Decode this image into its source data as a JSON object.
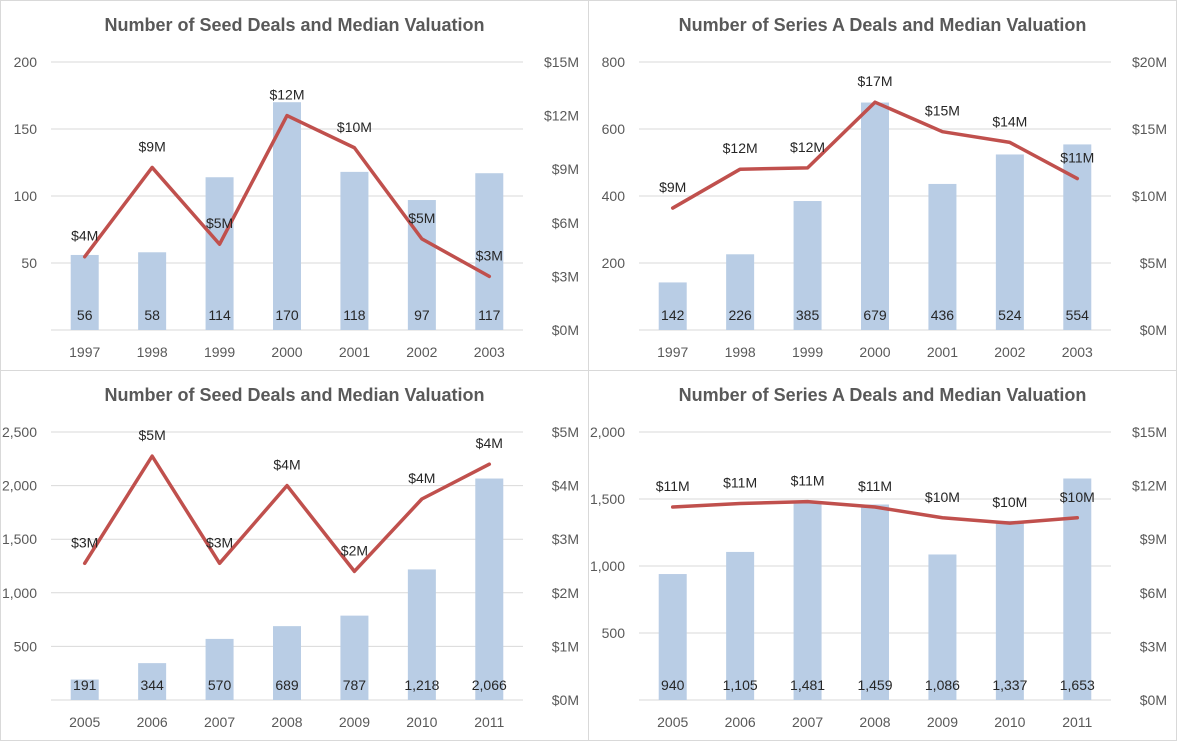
{
  "colors": {
    "bar": "#b9cde5",
    "line": "#c0504d",
    "axis_text": "#595959",
    "label_text": "#262626",
    "title_text": "#595959"
  },
  "chart_data": [
    {
      "type": "bar",
      "title": "Number of Seed Deals and Median Valuation",
      "categories": [
        "1997",
        "1998",
        "1999",
        "2000",
        "2001",
        "2002",
        "2003"
      ],
      "series": [
        {
          "values": [
            56,
            58,
            114,
            170,
            118,
            97,
            117
          ],
          "value_labels": [
            "56",
            "58",
            "114",
            "170",
            "118",
            "97",
            "117"
          ]
        },
        {
          "type": "line",
          "values": [
            4.1,
            9.1,
            4.8,
            12.0,
            10.2,
            5.1,
            3.0
          ],
          "value_labels": [
            "$4M",
            "$9M",
            "$5M",
            "$12M",
            "$10M",
            "$5M",
            "$3M"
          ]
        }
      ],
      "ylim": [
        0,
        200
      ],
      "y_ticks": [
        50,
        100,
        150,
        200
      ],
      "y_tick_labels": [
        "50",
        "100",
        "150",
        "200"
      ],
      "y2lim": [
        0,
        15
      ],
      "y2_ticks": [
        0,
        3,
        6,
        9,
        12,
        15
      ],
      "y2_tick_labels": [
        "$0M",
        "$3M",
        "$6M",
        "$9M",
        "$12M",
        "$15M"
      ],
      "grid": true
    },
    {
      "type": "bar",
      "title": "Number of Series A Deals and Median Valuation",
      "categories": [
        "1997",
        "1998",
        "1999",
        "2000",
        "2001",
        "2002",
        "2003"
      ],
      "series": [
        {
          "values": [
            142,
            226,
            385,
            679,
            436,
            524,
            554
          ],
          "value_labels": [
            "142",
            "226",
            "385",
            "679",
            "436",
            "524",
            "554"
          ]
        },
        {
          "type": "line",
          "values": [
            9.1,
            12.0,
            12.1,
            17.0,
            14.8,
            14.0,
            11.3
          ],
          "value_labels": [
            "$9M",
            "$12M",
            "$12M",
            "$17M",
            "$15M",
            "$14M",
            "$11M"
          ]
        }
      ],
      "ylim": [
        0,
        800
      ],
      "y_ticks": [
        200,
        400,
        600,
        800
      ],
      "y_tick_labels": [
        "200",
        "400",
        "600",
        "800"
      ],
      "y2lim": [
        0,
        20
      ],
      "y2_ticks": [
        0,
        5,
        10,
        15,
        20
      ],
      "y2_tick_labels": [
        "$0M",
        "$5M",
        "$10M",
        "$15M",
        "$20M"
      ],
      "grid": true
    },
    {
      "type": "bar",
      "title": "Number of Seed Deals and Median Valuation",
      "categories": [
        "2005",
        "2006",
        "2007",
        "2008",
        "2009",
        "2010",
        "2011"
      ],
      "series": [
        {
          "values": [
            191,
            344,
            570,
            689,
            787,
            1218,
            2066
          ],
          "value_labels": [
            "191",
            "344",
            "570",
            "689",
            "787",
            "1,218",
            "2,066"
          ]
        },
        {
          "type": "line",
          "values": [
            2.55,
            4.55,
            2.55,
            4.0,
            2.4,
            3.75,
            4.4
          ],
          "value_labels": [
            "$3M",
            "$5M",
            "$3M",
            "$4M",
            "$2M",
            "$4M",
            "$4M"
          ]
        }
      ],
      "ylim": [
        0,
        2500
      ],
      "y_ticks": [
        500,
        1000,
        1500,
        2000,
        2500
      ],
      "y_tick_labels": [
        "500",
        "1,000",
        "1,500",
        "2,000",
        "2,500"
      ],
      "y2lim": [
        0,
        5
      ],
      "y2_ticks": [
        0,
        1,
        2,
        3,
        4,
        5
      ],
      "y2_tick_labels": [
        "$0M",
        "$1M",
        "$2M",
        "$3M",
        "$4M",
        "$5M"
      ],
      "grid": true
    },
    {
      "type": "bar",
      "title": "Number of Series A Deals and Median Valuation",
      "categories": [
        "2005",
        "2006",
        "2007",
        "2008",
        "2009",
        "2010",
        "2011"
      ],
      "series": [
        {
          "values": [
            940,
            1105,
            1481,
            1459,
            1086,
            1337,
            1653
          ],
          "value_labels": [
            "940",
            "1,105",
            "1,481",
            "1,459",
            "1,086",
            "1,337",
            "1,653"
          ]
        },
        {
          "type": "line",
          "values": [
            10.8,
            11.0,
            11.1,
            10.8,
            10.2,
            9.9,
            10.2
          ],
          "value_labels": [
            "$11M",
            "$11M",
            "$11M",
            "$11M",
            "$10M",
            "$10M",
            "$10M"
          ]
        }
      ],
      "ylim": [
        0,
        2000
      ],
      "y_ticks": [
        500,
        1000,
        1500,
        2000
      ],
      "y_tick_labels": [
        "500",
        "1,000",
        "1,500",
        "2,000"
      ],
      "y2lim": [
        0,
        15
      ],
      "y2_ticks": [
        0,
        3,
        6,
        9,
        12,
        15
      ],
      "y2_tick_labels": [
        "$0M",
        "$3M",
        "$6M",
        "$9M",
        "$12M",
        "$15M"
      ],
      "grid": true
    }
  ]
}
